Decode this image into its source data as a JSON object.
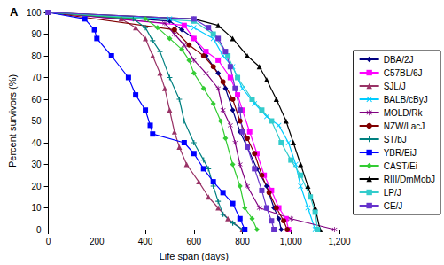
{
  "chart_data": {
    "type": "line",
    "title": "A",
    "x_label": "Life span (days)",
    "y_label": "Percent survivors (%)",
    "xlim": [
      0,
      1200
    ],
    "xticks": [
      0,
      200,
      400,
      600,
      800,
      1000,
      1200
    ],
    "ylim": [
      0,
      100
    ],
    "yticks": [
      0,
      10,
      20,
      30,
      40,
      50,
      60,
      70,
      80,
      90,
      100
    ],
    "grid": false,
    "legend": "right",
    "series": [
      {
        "name": "DBA/2J",
        "color": "#000080",
        "marker": "diamond",
        "x": [
          0,
          500,
          550,
          600,
          650,
          700,
          730,
          760,
          790,
          820,
          860,
          900,
          930,
          950,
          960
        ],
        "values": [
          100,
          96,
          92,
          88,
          80,
          72,
          65,
          55,
          45,
          38,
          28,
          20,
          10,
          5,
          0
        ]
      },
      {
        "name": "C57BL/6J",
        "color": "#FF00FF",
        "marker": "square",
        "x": [
          0,
          560,
          600,
          650,
          700,
          750,
          780,
          800,
          830,
          860,
          890,
          920,
          950,
          980,
          990
        ],
        "values": [
          100,
          94,
          88,
          82,
          78,
          70,
          62,
          55,
          45,
          35,
          25,
          18,
          10,
          5,
          0
        ]
      },
      {
        "name": "SJL/J",
        "color": "#993366",
        "marker": "triangle",
        "x": [
          0,
          300,
          360,
          400,
          430,
          460,
          480,
          500,
          520,
          540,
          570,
          620,
          660,
          700,
          740,
          800
        ],
        "values": [
          100,
          97,
          93,
          88,
          80,
          72,
          65,
          55,
          45,
          38,
          30,
          22,
          15,
          10,
          5,
          0
        ]
      },
      {
        "name": "BALB/cByJ",
        "color": "#00CCFF",
        "marker": "x",
        "x": [
          0,
          500,
          600,
          680,
          720,
          760,
          800,
          850,
          900,
          950,
          990,
          1020,
          1040,
          1070,
          1100
        ],
        "values": [
          100,
          97,
          93,
          88,
          80,
          75,
          65,
          58,
          52,
          48,
          40,
          30,
          20,
          10,
          0
        ]
      },
      {
        "name": "MOLD/Rk",
        "color": "#800080",
        "marker": "star",
        "x": [
          0,
          480,
          520,
          560,
          600,
          650,
          700,
          720,
          750,
          770,
          790,
          820,
          870,
          1000,
          1180
        ],
        "values": [
          100,
          95,
          90,
          85,
          78,
          72,
          65,
          55,
          48,
          40,
          30,
          20,
          10,
          5,
          0
        ]
      },
      {
        "name": "NZW/LacJ",
        "color": "#800000",
        "marker": "circle",
        "x": [
          0,
          520,
          580,
          640,
          680,
          720,
          760,
          790,
          820,
          850,
          880,
          910,
          940,
          970,
          985
        ],
        "values": [
          100,
          92,
          85,
          80,
          75,
          68,
          60,
          50,
          42,
          35,
          25,
          17,
          10,
          4,
          0
        ]
      },
      {
        "name": "ST/bJ",
        "color": "#008080",
        "marker": "plus",
        "x": [
          0,
          350,
          400,
          430,
          460,
          500,
          540,
          560,
          600,
          640,
          660,
          680,
          700,
          720,
          760,
          800
        ],
        "values": [
          100,
          97,
          93,
          87,
          82,
          70,
          60,
          50,
          40,
          32,
          28,
          20,
          13,
          7,
          3,
          0
        ]
      },
      {
        "name": "YBR/EiJ",
        "color": "#0000FF",
        "marker": "dash",
        "x": [
          0,
          150,
          190,
          200,
          260,
          330,
          360,
          400,
          420,
          430,
          560,
          600,
          640,
          680,
          720,
          760,
          790,
          810
        ],
        "values": [
          100,
          97,
          92,
          88,
          80,
          70,
          62,
          55,
          48,
          44,
          40,
          35,
          28,
          22,
          17,
          12,
          5,
          0
        ]
      },
      {
        "name": "CAST/Ei",
        "color": "#33CC33",
        "marker": "diamond",
        "x": [
          0,
          400,
          450,
          500,
          550,
          580,
          600,
          640,
          680,
          710,
          730,
          760,
          790,
          810,
          840,
          860
        ],
        "values": [
          100,
          97,
          93,
          88,
          83,
          78,
          72,
          65,
          58,
          50,
          42,
          30,
          20,
          10,
          5,
          0
        ]
      },
      {
        "name": "RIII/DmMobJ",
        "color": "#000000",
        "marker": "triangle",
        "x": [
          0,
          600,
          700,
          760,
          820,
          870,
          900,
          940,
          980,
          1010,
          1040,
          1070,
          1100,
          1120
        ],
        "values": [
          100,
          97,
          94,
          88,
          80,
          75,
          69,
          60,
          50,
          40,
          30,
          20,
          10,
          0
        ]
      },
      {
        "name": "LP/J",
        "color": "#33CCCC",
        "marker": "dash",
        "x": [
          0,
          600,
          680,
          740,
          780,
          840,
          880,
          920,
          960,
          1000,
          1040,
          1080,
          1100,
          1110
        ],
        "values": [
          100,
          96,
          90,
          80,
          70,
          60,
          55,
          50,
          40,
          32,
          25,
          15,
          8,
          0
        ]
      },
      {
        "name": "CE/J",
        "color": "#6633CC",
        "marker": "square",
        "x": [
          0,
          600,
          660,
          700,
          730,
          750,
          770,
          790,
          800,
          820,
          850,
          880,
          900,
          920,
          930
        ],
        "values": [
          100,
          97,
          93,
          88,
          82,
          75,
          65,
          55,
          45,
          38,
          28,
          18,
          10,
          4,
          0
        ]
      }
    ]
  }
}
